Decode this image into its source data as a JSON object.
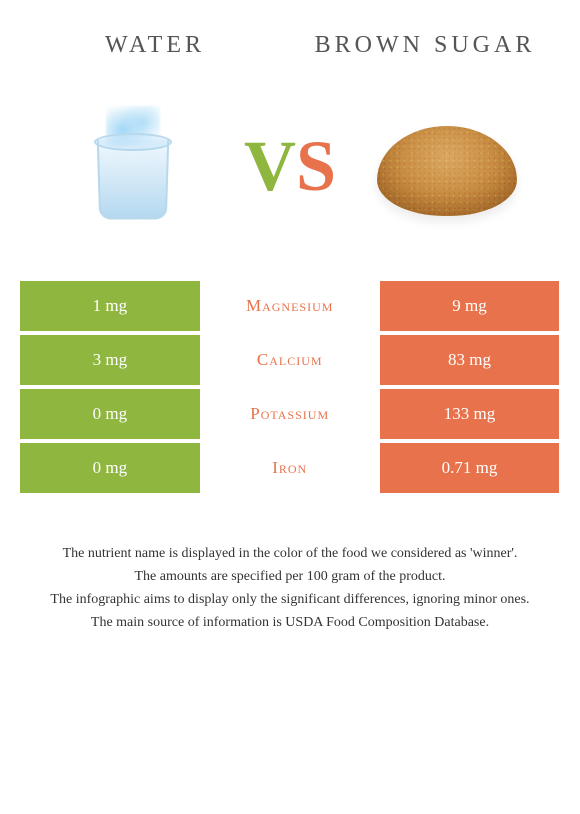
{
  "header": {
    "left_title": "Water",
    "right_title": "Brown sugar"
  },
  "vs": {
    "v": "V",
    "s": "S"
  },
  "colors": {
    "left": "#8fb63f",
    "right": "#e8724c",
    "background": "#ffffff",
    "text": "#333333"
  },
  "comparison": {
    "type": "comparison-table",
    "rows": [
      {
        "left_value": "1 mg",
        "nutrient": "Magnesium",
        "right_value": "9 mg",
        "winner": "right"
      },
      {
        "left_value": "3 mg",
        "nutrient": "Calcium",
        "right_value": "83 mg",
        "winner": "right"
      },
      {
        "left_value": "0 mg",
        "nutrient": "Potassium",
        "right_value": "133 mg",
        "winner": "right"
      },
      {
        "left_value": "0 mg",
        "nutrient": "Iron",
        "right_value": "0.71 mg",
        "winner": "right"
      }
    ]
  },
  "notes": {
    "line1": "The nutrient name is displayed in the color of the food we considered as 'winner'.",
    "line2": "The amounts are specified per 100 gram of the product.",
    "line3": "The infographic aims to display only the significant differences, ignoring minor ones.",
    "line4": "The main source of information is USDA Food Composition Database."
  }
}
